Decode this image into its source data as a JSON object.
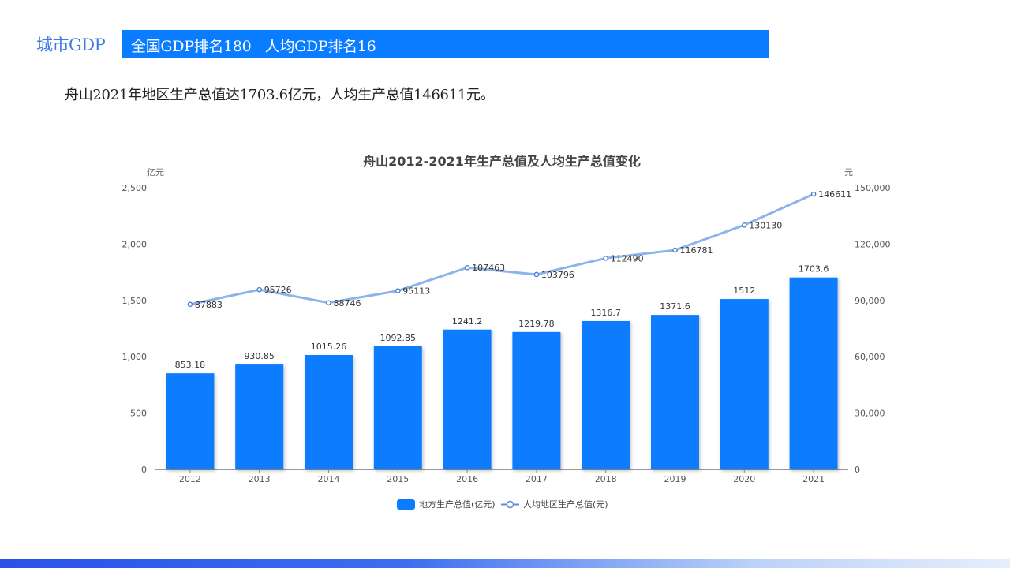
{
  "header": {
    "section_title": "城市GDP",
    "banner_text": "全国GDP排名180   人均GDP排名16"
  },
  "summary": "舟山2021年地区生产总值达1703.6亿元，人均生产总值146611元。",
  "colors": {
    "bar": "#0a7cff",
    "line": "#8cb3ea",
    "axis_text": "#555555"
  },
  "chart_data": {
    "type": "bar",
    "title": "舟山2012-2021年生产总值及人均生产总值变化",
    "categories": [
      "2012",
      "2013",
      "2014",
      "2015",
      "2016",
      "2017",
      "2018",
      "2019",
      "2020",
      "2021"
    ],
    "left_axis": {
      "unit": "亿元",
      "range": [
        0,
        2500
      ],
      "ticks": [
        0,
        500,
        1000,
        1500,
        2000,
        2500
      ],
      "tick_labels": [
        "0",
        "500",
        "1,000",
        "1,500",
        "2,000",
        "2,500"
      ]
    },
    "right_axis": {
      "unit": "元",
      "range": [
        0,
        150000
      ],
      "ticks": [
        0,
        30000,
        60000,
        90000,
        120000,
        150000
      ],
      "tick_labels": [
        "0",
        "30,000",
        "60,000",
        "90,000",
        "120,000",
        "150,000"
      ]
    },
    "series": [
      {
        "name": "地方生产总值(亿元)",
        "type": "bar",
        "axis": "left",
        "values": [
          853.18,
          930.85,
          1015.26,
          1092.85,
          1241.2,
          1219.78,
          1316.7,
          1371.6,
          1512,
          1703.6
        ],
        "labels": [
          "853.18",
          "930.85",
          "1015.26",
          "1092.85",
          "1241.2",
          "1219.78",
          "1316.7",
          "1371.6",
          "1512",
          "1703.6"
        ]
      },
      {
        "name": "人均地区生产总值(元)",
        "type": "line",
        "axis": "right",
        "values": [
          87883,
          95726,
          88746,
          95113,
          107463,
          103796,
          112490,
          116781,
          130130,
          146611
        ],
        "labels": [
          "87883",
          "95726",
          "88746",
          "95113",
          "107463",
          "103796",
          "112490",
          "116781",
          "130130",
          "146611"
        ]
      }
    ],
    "legend_position": "bottom-center"
  }
}
